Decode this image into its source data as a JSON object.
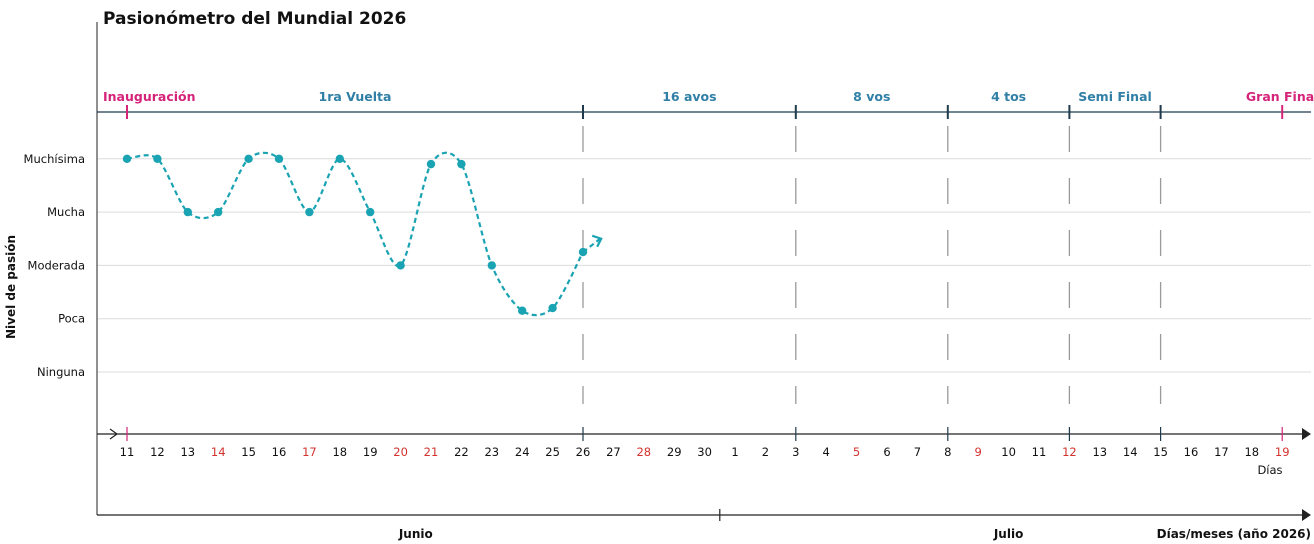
{
  "colors": {
    "line": "#1aa3b2",
    "stage": "#2f7fa6",
    "highlight": "#d6237a",
    "weekend": "#d2312d",
    "axis": "#1e3a4c",
    "grid": "#dcdcdc",
    "dash": "#9a9a9a"
  },
  "chart_data": {
    "type": "line",
    "title": "Pasionómetro del Mundial 2026",
    "ylabel": "Nivel de pasión",
    "xlabel": "Días/meses (año 2026)",
    "x_unit_label": "Días",
    "y_categories": [
      "Ninguna",
      "Poca",
      "Moderada",
      "Mucha",
      "Muchísima"
    ],
    "grid": true,
    "days": [
      {
        "label": "11",
        "red": false
      },
      {
        "label": "12",
        "red": false
      },
      {
        "label": "13",
        "red": false
      },
      {
        "label": "14",
        "red": true
      },
      {
        "label": "15",
        "red": false
      },
      {
        "label": "16",
        "red": false
      },
      {
        "label": "17",
        "red": true
      },
      {
        "label": "18",
        "red": false
      },
      {
        "label": "19",
        "red": false
      },
      {
        "label": "20",
        "red": true
      },
      {
        "label": "21",
        "red": true
      },
      {
        "label": "22",
        "red": false
      },
      {
        "label": "23",
        "red": false
      },
      {
        "label": "24",
        "red": false
      },
      {
        "label": "25",
        "red": false
      },
      {
        "label": "26",
        "red": false
      },
      {
        "label": "27",
        "red": false
      },
      {
        "label": "28",
        "red": true
      },
      {
        "label": "29",
        "red": false
      },
      {
        "label": "30",
        "red": false
      },
      {
        "label": "1",
        "red": false
      },
      {
        "label": "2",
        "red": false
      },
      {
        "label": "3",
        "red": false
      },
      {
        "label": "4",
        "red": false
      },
      {
        "label": "5",
        "red": true
      },
      {
        "label": "6",
        "red": false
      },
      {
        "label": "7",
        "red": false
      },
      {
        "label": "8",
        "red": false
      },
      {
        "label": "9",
        "red": true
      },
      {
        "label": "10",
        "red": false
      },
      {
        "label": "11",
        "red": false
      },
      {
        "label": "12",
        "red": true
      },
      {
        "label": "13",
        "red": false
      },
      {
        "label": "14",
        "red": false
      },
      {
        "label": "15",
        "red": false
      },
      {
        "label": "16",
        "red": false
      },
      {
        "label": "17",
        "red": false
      },
      {
        "label": "18",
        "red": false
      },
      {
        "label": "19",
        "red": true
      }
    ],
    "months": [
      {
        "label": "Junio",
        "start_index": 0,
        "end_index": 19
      },
      {
        "label": "Julio",
        "start_index": 20,
        "end_index": 38
      }
    ],
    "stages": [
      {
        "label": "Inauguración",
        "day_index": 0,
        "end_index": 0,
        "highlight": true
      },
      {
        "label": "1ra Vuelta",
        "day_index": 0,
        "end_index": 15,
        "highlight": false
      },
      {
        "label": "16 avos",
        "day_index": 15,
        "end_index": 22,
        "highlight": false
      },
      {
        "label": "8 vos",
        "day_index": 22,
        "end_index": 27,
        "highlight": false
      },
      {
        "label": "4 tos",
        "day_index": 27,
        "end_index": 31,
        "highlight": false
      },
      {
        "label": "Semi Final",
        "day_index": 31,
        "end_index": 34,
        "highlight": false
      },
      {
        "label": "Gran Final",
        "day_index": 38,
        "end_index": 38,
        "highlight": true
      }
    ],
    "series": [
      {
        "points": [
          {
            "x": 0,
            "y": 4
          },
          {
            "x": 1,
            "y": 4
          },
          {
            "x": 2,
            "y": 3
          },
          {
            "x": 3,
            "y": 3
          },
          {
            "x": 4,
            "y": 4
          },
          {
            "x": 5,
            "y": 4
          },
          {
            "x": 6,
            "y": 3
          },
          {
            "x": 7,
            "y": 4
          },
          {
            "x": 8,
            "y": 3
          },
          {
            "x": 9,
            "y": 2
          },
          {
            "x": 10,
            "y": 3.9
          },
          {
            "x": 11,
            "y": 3.9
          },
          {
            "x": 12,
            "y": 2
          },
          {
            "x": 13,
            "y": 1.15
          },
          {
            "x": 14,
            "y": 1.2
          },
          {
            "x": 15,
            "y": 2.25
          }
        ],
        "trend_to": {
          "x": 15.5,
          "y": 2.5
        }
      }
    ]
  }
}
